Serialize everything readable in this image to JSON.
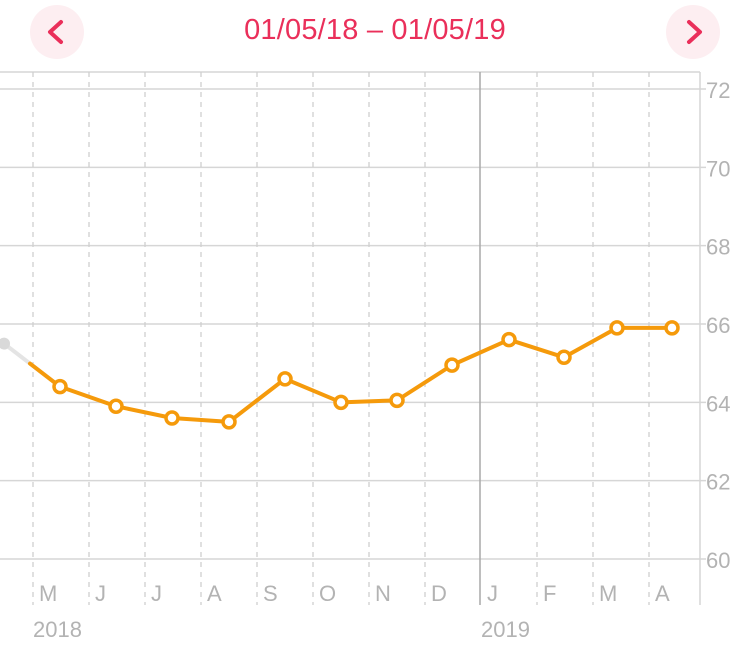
{
  "header": {
    "range_label": "01/05/18 – 01/05/19",
    "prev_icon": "chevron-left-icon",
    "next_icon": "chevron-right-icon",
    "accent_color": "#ea2f5a",
    "button_bg": "#fdeef1"
  },
  "chart_data": {
    "type": "line",
    "title": "",
    "xlabel": "",
    "ylabel": "",
    "ylim": [
      60,
      72
    ],
    "yticks": [
      60,
      62,
      64,
      66,
      68,
      70,
      72
    ],
    "y_axis_side": "right",
    "grid": true,
    "legend": "none",
    "line_color": "#f59a0b",
    "partial_point_color": "#d9d9d9",
    "x_month_labels": [
      "M",
      "J",
      "J",
      "A",
      "S",
      "O",
      "N",
      "D",
      "J",
      "F",
      "M",
      "A"
    ],
    "year_labels": [
      "2018",
      "2019"
    ],
    "series": [
      {
        "x": [
          "2018-04",
          "2018-05",
          "2018-06",
          "2018-07",
          "2018-08",
          "2018-09",
          "2018-10",
          "2018-11",
          "2018-12",
          "2019-01",
          "2019-02",
          "2019-03",
          "2019-04"
        ],
        "values": [
          65.5,
          64.4,
          63.9,
          63.6,
          63.5,
          64.6,
          64.0,
          64.05,
          64.95,
          65.6,
          65.15,
          65.9,
          65.9
        ]
      }
    ]
  }
}
